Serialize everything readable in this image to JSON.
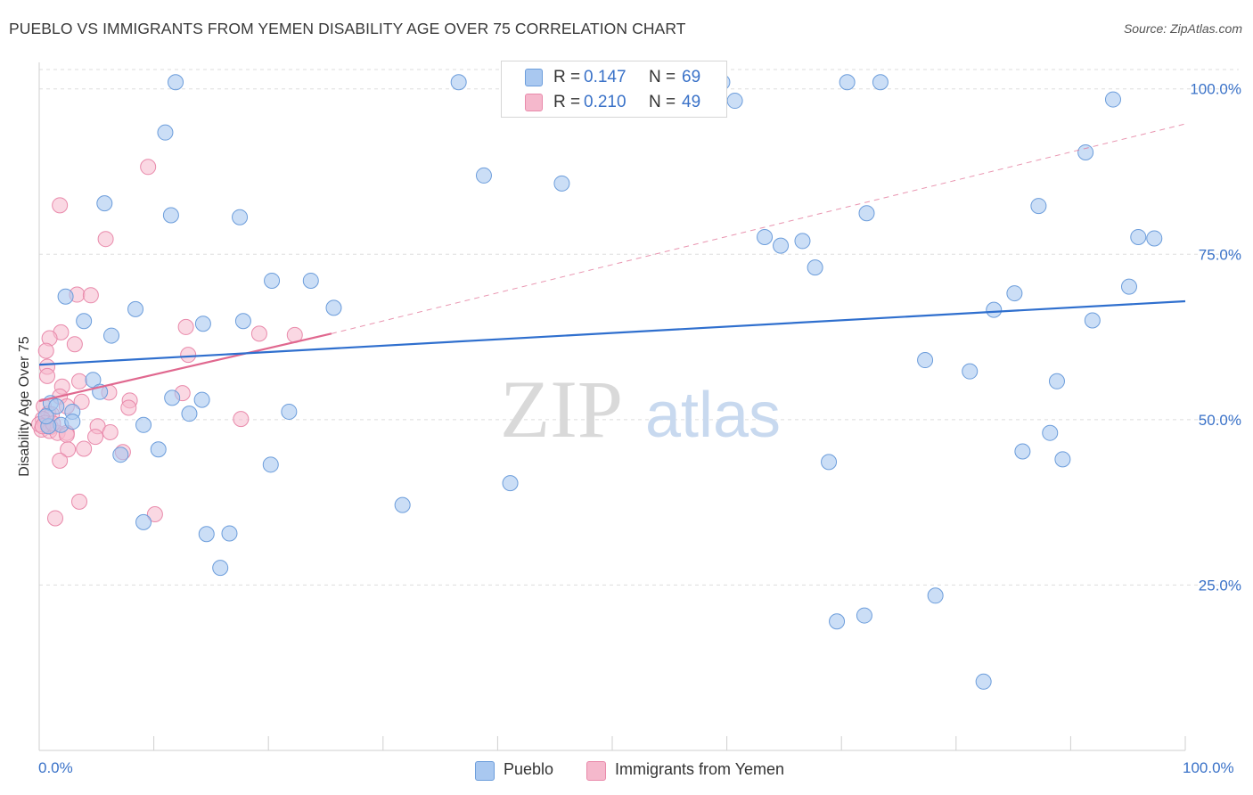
{
  "header": {
    "title": "PUEBLO VS IMMIGRANTS FROM YEMEN DISABILITY AGE OVER 75 CORRELATION CHART",
    "source": "Source: ZipAtlas.com"
  },
  "watermark": {
    "zip": "ZIP",
    "atlas": "atlas"
  },
  "stats_box": {
    "rows": [
      {
        "r_label": "R =",
        "r_value": "0.147",
        "n_label": "N =",
        "n_value": "69",
        "color": "#a9c8f0"
      },
      {
        "r_label": "R =",
        "r_value": "0.210",
        "n_label": "N =",
        "n_value": "49",
        "color": "#f5b8cc"
      }
    ]
  },
  "legend": {
    "items": [
      {
        "label": "Pueblo",
        "color": "#a9c8f0"
      },
      {
        "label": "Immigrants from Yemen",
        "color": "#f5b8cc"
      }
    ]
  },
  "colors": {
    "pueblo_fill": "#a9c8f0",
    "pueblo_stroke": "#6c9ddb",
    "pueblo_line": "#2f6fce",
    "yemen_fill": "#f5b8cc",
    "yemen_stroke": "#e98aab",
    "yemen_line": "#e0688f",
    "grid": "#dddddd",
    "axis_text": "#3a72c8"
  },
  "chart_data": {
    "type": "scatter",
    "title": "PUEBLO VS IMMIGRANTS FROM YEMEN DISABILITY AGE OVER 75 CORRELATION CHART",
    "xlabel": "",
    "ylabel": "Disability Age Over 75",
    "xlim": [
      0,
      100
    ],
    "ylim": [
      0,
      104
    ],
    "x_tick_labels": [
      "0.0%",
      "100.0%"
    ],
    "y_ticks": [
      25,
      50,
      75,
      100
    ],
    "y_tick_labels": [
      "25.0%",
      "50.0%",
      "75.0%",
      "100.0%"
    ],
    "grid": true,
    "legend_position": "bottom",
    "series": [
      {
        "name": "Pueblo",
        "points": [
          [
            11.9,
            101.0
          ],
          [
            36.6,
            101.0
          ],
          [
            59.6,
            101.0
          ],
          [
            70.5,
            101.0
          ],
          [
            73.4,
            101.0
          ],
          [
            60.7,
            98.2
          ],
          [
            93.7,
            98.4
          ],
          [
            11.0,
            93.4
          ],
          [
            91.3,
            90.4
          ],
          [
            38.8,
            86.9
          ],
          [
            45.6,
            85.7
          ],
          [
            5.7,
            82.7
          ],
          [
            87.2,
            82.3
          ],
          [
            11.5,
            80.9
          ],
          [
            17.5,
            80.6
          ],
          [
            72.2,
            81.2
          ],
          [
            63.3,
            77.6
          ],
          [
            64.7,
            76.3
          ],
          [
            66.6,
            77.0
          ],
          [
            95.9,
            77.6
          ],
          [
            97.3,
            77.4
          ],
          [
            67.7,
            73.0
          ],
          [
            20.3,
            71.0
          ],
          [
            23.7,
            71.0
          ],
          [
            2.3,
            68.6
          ],
          [
            85.1,
            69.1
          ],
          [
            95.1,
            70.1
          ],
          [
            8.4,
            66.7
          ],
          [
            25.7,
            66.9
          ],
          [
            83.3,
            66.6
          ],
          [
            3.9,
            64.9
          ],
          [
            14.3,
            64.5
          ],
          [
            17.8,
            64.9
          ],
          [
            91.9,
            65.0
          ],
          [
            6.3,
            62.7
          ],
          [
            77.3,
            59.0
          ],
          [
            81.2,
            57.3
          ],
          [
            4.7,
            56.0
          ],
          [
            88.8,
            55.8
          ],
          [
            1.0,
            52.5
          ],
          [
            5.3,
            54.2
          ],
          [
            14.2,
            53.0
          ],
          [
            11.6,
            53.3
          ],
          [
            1.5,
            52.0
          ],
          [
            2.9,
            51.2
          ],
          [
            21.8,
            51.2
          ],
          [
            13.1,
            50.9
          ],
          [
            1.9,
            49.2
          ],
          [
            0.8,
            49.0
          ],
          [
            2.9,
            49.7
          ],
          [
            9.1,
            49.2
          ],
          [
            88.2,
            48.0
          ],
          [
            10.4,
            45.5
          ],
          [
            7.1,
            44.7
          ],
          [
            85.8,
            45.2
          ],
          [
            89.3,
            44.0
          ],
          [
            68.9,
            43.6
          ],
          [
            20.2,
            43.2
          ],
          [
            41.1,
            40.4
          ],
          [
            31.7,
            37.1
          ],
          [
            9.1,
            34.5
          ],
          [
            14.6,
            32.7
          ],
          [
            16.6,
            32.8
          ],
          [
            15.8,
            27.6
          ],
          [
            78.2,
            23.4
          ],
          [
            69.6,
            19.5
          ],
          [
            72.0,
            20.4
          ],
          [
            82.4,
            10.4
          ],
          [
            0.6,
            50.5
          ]
        ]
      },
      {
        "name": "Immigrants from Yemen",
        "points": [
          [
            9.5,
            88.2
          ],
          [
            1.8,
            82.4
          ],
          [
            5.8,
            77.3
          ],
          [
            3.3,
            68.9
          ],
          [
            4.5,
            68.8
          ],
          [
            12.8,
            64.0
          ],
          [
            19.2,
            63.0
          ],
          [
            22.3,
            62.8
          ],
          [
            1.9,
            63.2
          ],
          [
            3.1,
            61.4
          ],
          [
            0.9,
            62.3
          ],
          [
            0.6,
            60.4
          ],
          [
            13.0,
            59.8
          ],
          [
            0.7,
            58.0
          ],
          [
            3.5,
            55.8
          ],
          [
            2.0,
            55.0
          ],
          [
            0.7,
            56.6
          ],
          [
            6.1,
            54.1
          ],
          [
            12.5,
            54.0
          ],
          [
            1.8,
            53.5
          ],
          [
            7.9,
            52.9
          ],
          [
            3.7,
            52.7
          ],
          [
            0.4,
            52.0
          ],
          [
            2.4,
            52.0
          ],
          [
            7.8,
            51.8
          ],
          [
            17.6,
            50.1
          ],
          [
            0.8,
            50.9
          ],
          [
            1.1,
            50.8
          ],
          [
            0.3,
            50.1
          ],
          [
            0.5,
            49.5
          ],
          [
            5.1,
            49.0
          ],
          [
            1.0,
            48.9
          ],
          [
            0.2,
            48.5
          ],
          [
            0.0,
            49.3
          ],
          [
            0.9,
            48.3
          ],
          [
            1.6,
            48.0
          ],
          [
            2.4,
            48.0
          ],
          [
            6.2,
            48.1
          ],
          [
            4.9,
            47.4
          ],
          [
            2.4,
            47.7
          ],
          [
            2.5,
            45.5
          ],
          [
            3.9,
            45.6
          ],
          [
            7.3,
            45.1
          ],
          [
            1.8,
            43.8
          ],
          [
            3.5,
            37.6
          ],
          [
            10.1,
            35.7
          ],
          [
            1.4,
            35.1
          ],
          [
            0.3,
            49.0
          ],
          [
            1.2,
            49.4
          ]
        ]
      }
    ],
    "trend_lines": [
      {
        "series": "Pueblo",
        "x": [
          0,
          100
        ],
        "y": [
          58.3,
          67.9
        ]
      },
      {
        "series": "Immigrants from Yemen",
        "x": [
          0,
          25.5
        ],
        "y": [
          52.8,
          63.0
        ]
      },
      {
        "series": "Immigrants from Yemen (extrapolated)",
        "x": [
          25.5,
          100
        ],
        "y": [
          63.0,
          94.7
        ]
      }
    ]
  }
}
